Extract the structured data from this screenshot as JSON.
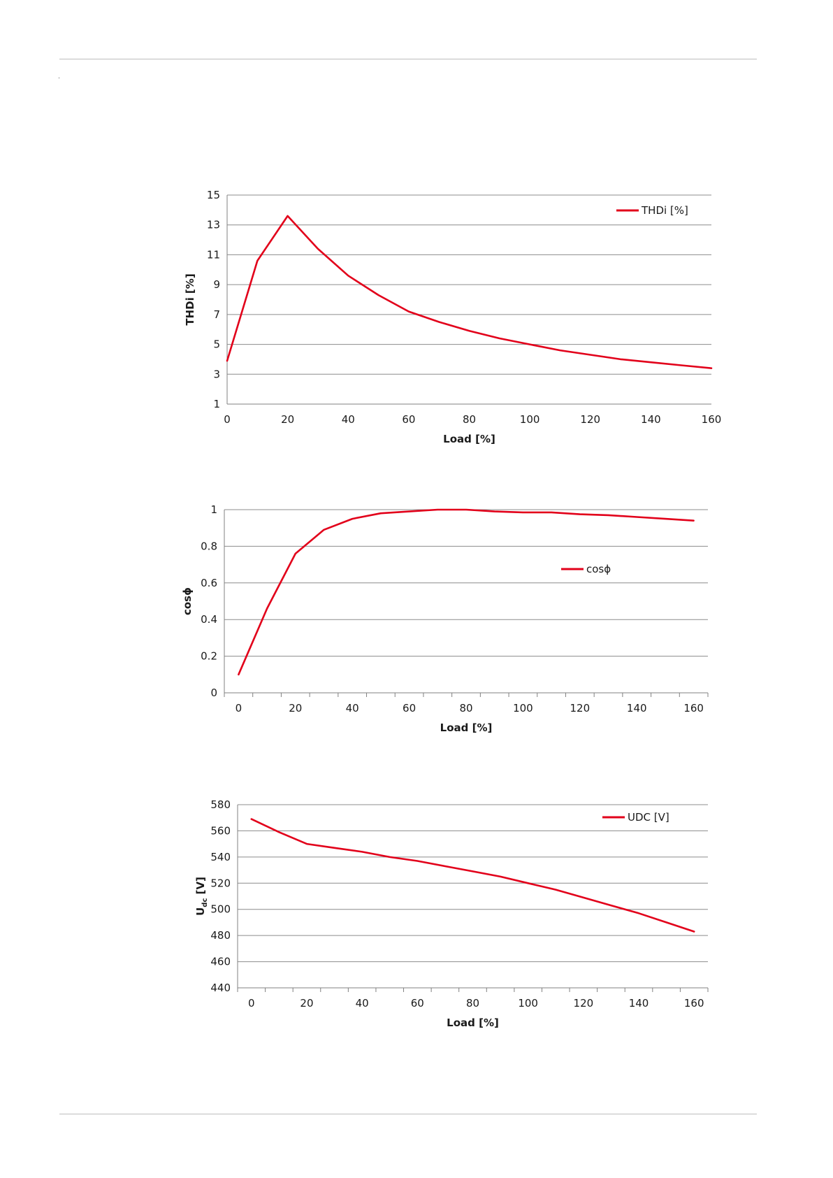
{
  "accent_color": "#e2001a",
  "chart_data": [
    {
      "type": "line",
      "title": "",
      "xlabel": "Load [%]",
      "ylabel": "THDi [%]",
      "xlim": [
        0,
        160
      ],
      "ylim": [
        1,
        15
      ],
      "xticks": [
        0,
        20,
        40,
        60,
        80,
        100,
        120,
        140,
        160
      ],
      "yticks": [
        1,
        3,
        5,
        7,
        9,
        11,
        13,
        15
      ],
      "grid": "horizontal",
      "legend": "top-right",
      "series": [
        {
          "name": "THDi [%]",
          "color": "#e2001a",
          "x": [
            0,
            10,
            20,
            30,
            40,
            50,
            60,
            70,
            80,
            90,
            100,
            110,
            120,
            130,
            140,
            150,
            160
          ],
          "y": [
            3.9,
            10.6,
            13.6,
            11.4,
            9.6,
            8.3,
            7.2,
            6.5,
            5.9,
            5.4,
            5.0,
            4.6,
            4.3,
            4.0,
            3.8,
            3.6,
            3.4
          ]
        }
      ]
    },
    {
      "type": "line",
      "title": "",
      "xlabel": "Load [%]",
      "ylabel": "cosϕ",
      "xlim": [
        -5,
        165
      ],
      "ylim": [
        0,
        1
      ],
      "xticks": [
        0,
        20,
        40,
        60,
        80,
        100,
        120,
        140,
        160
      ],
      "yticks": [
        0,
        0.2,
        0.4,
        0.6,
        0.8,
        1
      ],
      "grid": "horizontal",
      "legend": "center-right",
      "series": [
        {
          "name": "cosϕ",
          "color": "#e2001a",
          "x": [
            0,
            10,
            20,
            30,
            40,
            50,
            60,
            70,
            80,
            90,
            100,
            110,
            120,
            130,
            140,
            150,
            160
          ],
          "y": [
            0.1,
            0.46,
            0.76,
            0.89,
            0.95,
            0.98,
            0.99,
            1.0,
            1.0,
            0.99,
            0.985,
            0.985,
            0.975,
            0.97,
            0.96,
            0.95,
            0.94
          ]
        }
      ]
    },
    {
      "type": "line",
      "title": "",
      "xlabel": "Load [%]",
      "ylabel": "Udc [V]",
      "ylabel_main": "U",
      "ylabel_sub": "dc",
      "ylabel_suffix": " [V]",
      "xlim": [
        -5,
        165
      ],
      "ylim": [
        440,
        580
      ],
      "xticks": [
        0,
        20,
        40,
        60,
        80,
        100,
        120,
        140,
        160
      ],
      "yticks": [
        440,
        460,
        480,
        500,
        520,
        540,
        560,
        580
      ],
      "grid": "horizontal",
      "legend": "top-right",
      "series": [
        {
          "name": "UDC [V]",
          "color": "#e2001a",
          "x": [
            0,
            10,
            20,
            30,
            40,
            50,
            60,
            70,
            80,
            90,
            100,
            110,
            120,
            130,
            140,
            150,
            160
          ],
          "y": [
            569,
            559,
            550,
            547,
            544,
            540,
            537,
            533,
            529,
            525,
            520,
            515,
            509,
            503,
            497,
            490,
            483
          ]
        }
      ]
    }
  ]
}
